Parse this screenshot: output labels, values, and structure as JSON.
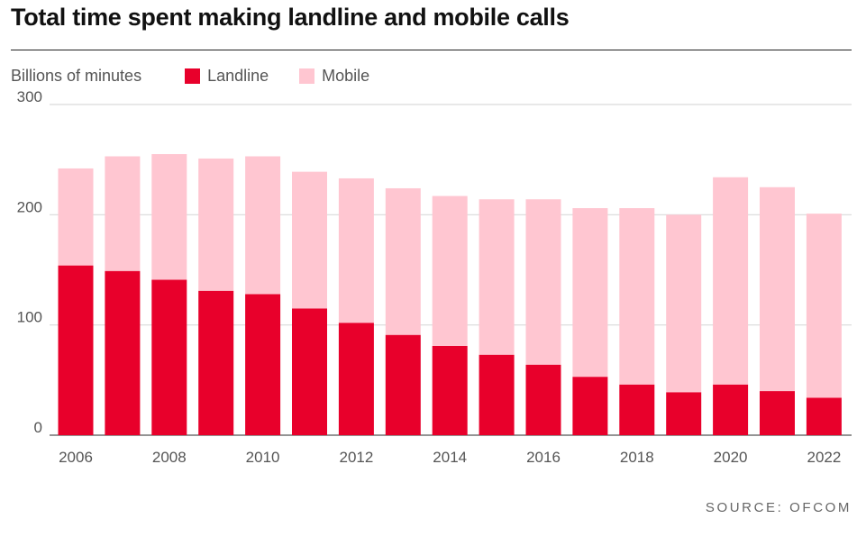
{
  "title": "Total time spent making landline and mobile calls",
  "source": "SOURCE: OFCOM",
  "colors": {
    "landline": "#e8002b",
    "mobile": "#ffc6d1",
    "grid": "#d9d9d9",
    "axis_text": "#555555"
  },
  "chart_data": {
    "type": "bar",
    "stacked": true,
    "title": "Total time spent making landline and mobile calls",
    "ylabel": "Billions of minutes",
    "xlabel": "",
    "ylim": [
      0,
      300
    ],
    "yticks": [
      0,
      100,
      200,
      300
    ],
    "ytick_labels": [
      "0",
      "100",
      "200",
      "300"
    ],
    "grid": true,
    "legend_position": "top-left",
    "categories": [
      "2006",
      "2007",
      "2008",
      "2009",
      "2010",
      "2011",
      "2012",
      "2013",
      "2014",
      "2015",
      "2016",
      "2017",
      "2018",
      "2019",
      "2020",
      "2021",
      "2022"
    ],
    "xtick_labels": [
      "2006",
      "",
      "2008",
      "",
      "2010",
      "",
      "2012",
      "",
      "2014",
      "",
      "2016",
      "",
      "2018",
      "",
      "2020",
      "",
      "2022"
    ],
    "series": [
      {
        "name": "Landline",
        "color": "#e8002b",
        "values": [
          154,
          149,
          141,
          131,
          128,
          115,
          102,
          91,
          81,
          73,
          64,
          53,
          46,
          39,
          46,
          40,
          34
        ]
      },
      {
        "name": "Mobile",
        "color": "#ffc6d1",
        "values": [
          88,
          104,
          114,
          120,
          125,
          124,
          131,
          133,
          136,
          141,
          150,
          153,
          160,
          161,
          188,
          185,
          167
        ]
      }
    ]
  }
}
